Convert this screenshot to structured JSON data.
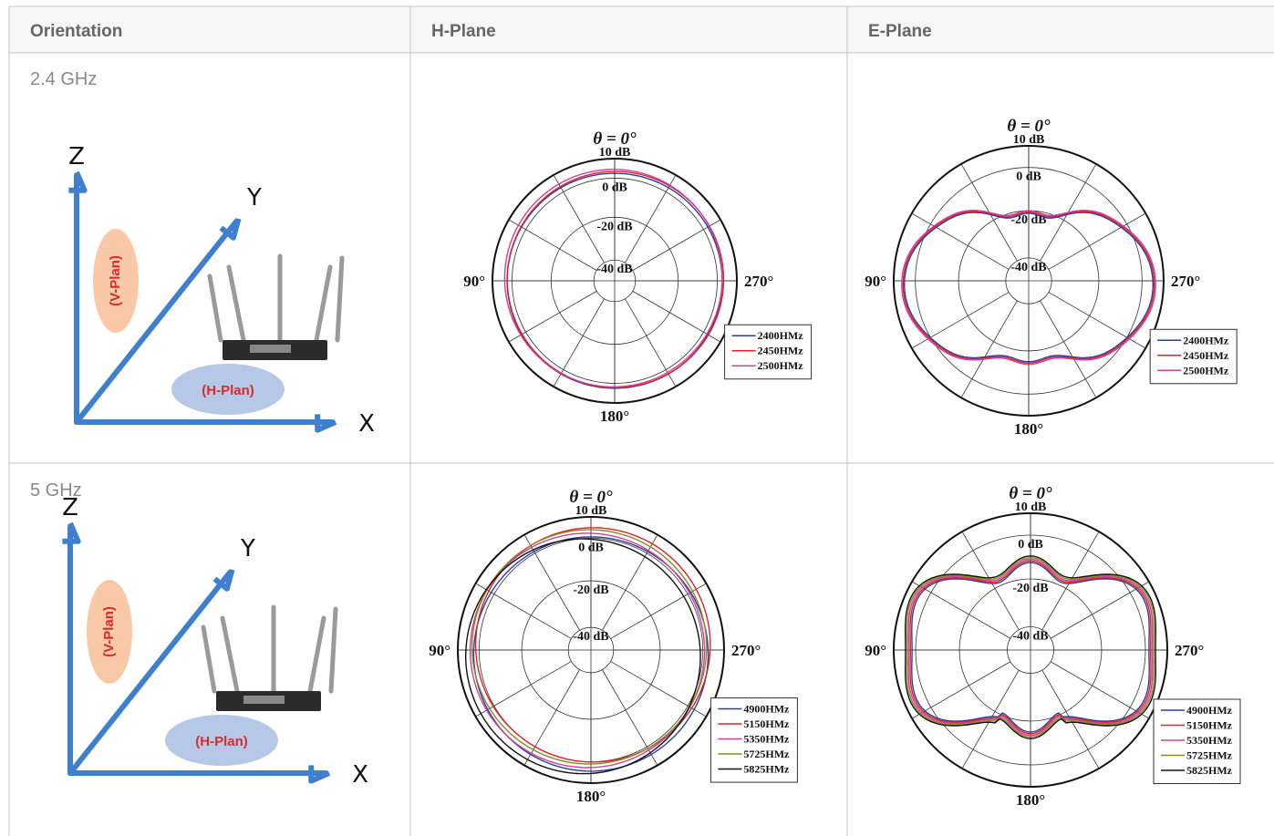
{
  "table": {
    "headers": [
      "Orientation",
      "H-Plane",
      "E-Plane"
    ],
    "axis_labels": {
      "z": "Z",
      "y": "Y",
      "x": "X",
      "v_plane": "(V-Plan)",
      "h_plane": "(H-Plan)"
    },
    "polar_labels": {
      "theta": "θ = 0°",
      "rings": [
        "10 dB",
        "0 dB",
        "-20 dB",
        "-40 dB"
      ],
      "left": "90°",
      "right": "270°",
      "bottom": "180°"
    },
    "rows": [
      {
        "band": "2.4 GHz",
        "legend": [
          {
            "name": "2400HMz",
            "color": "#2a3f9e"
          },
          {
            "name": "2450HMz",
            "color": "#e0202a"
          },
          {
            "name": "2500HMz",
            "color": "#d0409a"
          }
        ]
      },
      {
        "band": "5 GHz",
        "legend": [
          {
            "name": "4900HMz",
            "color": "#2a3f9e"
          },
          {
            "name": "5150HMz",
            "color": "#e0202a"
          },
          {
            "name": "5350HMz",
            "color": "#d0409a"
          },
          {
            "name": "5725HMz",
            "color": "#8a8a20"
          },
          {
            "name": "5825HMz",
            "color": "#111111"
          }
        ]
      }
    ]
  }
}
